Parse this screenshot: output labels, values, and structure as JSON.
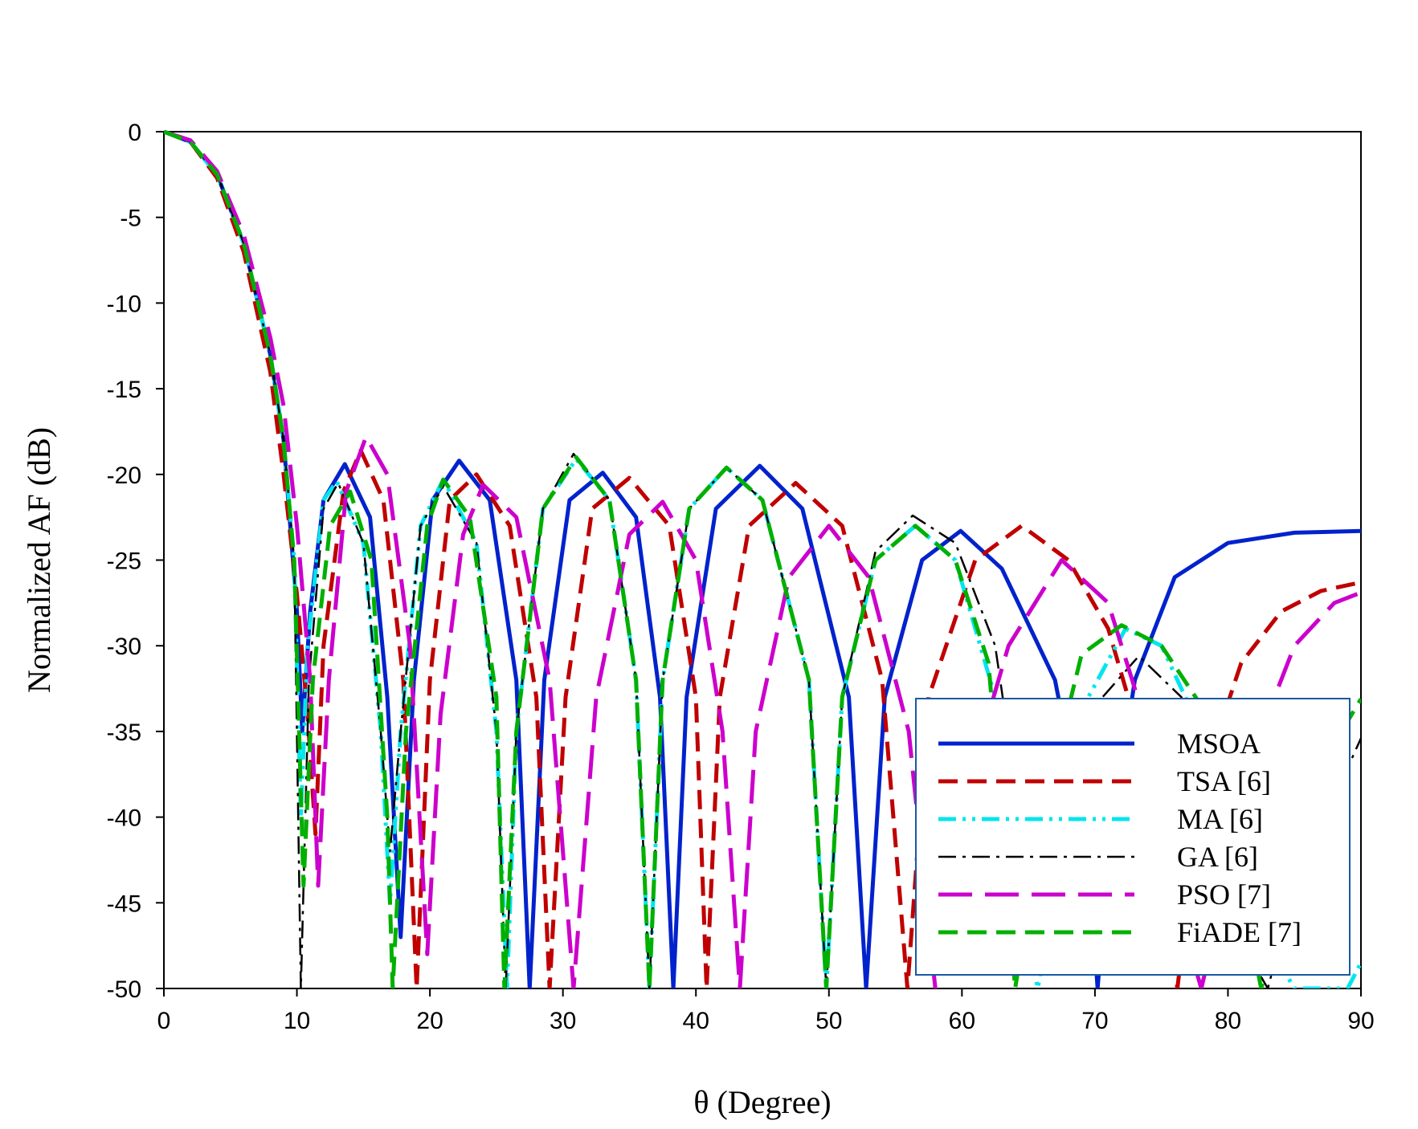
{
  "chart_data": {
    "type": "line",
    "title": "",
    "xlabel": "θ (Degree)",
    "ylabel": "Normalized AF (dB)",
    "xlim": [
      0,
      90
    ],
    "ylim": [
      -50,
      0
    ],
    "xticks": [
      0,
      10,
      20,
      30,
      40,
      50,
      60,
      70,
      80,
      90
    ],
    "yticks": [
      0,
      -5,
      -10,
      -15,
      -20,
      -25,
      -30,
      -35,
      -40,
      -45,
      -50
    ],
    "grid": false,
    "legend_position": "bottom-right",
    "series": [
      {
        "name": "MSOA",
        "color": "#0022cc",
        "style": "solid",
        "width": 5,
        "points": [
          [
            0,
            0
          ],
          [
            2,
            -0.6
          ],
          [
            4,
            -2.5
          ],
          [
            6,
            -6.5
          ],
          [
            8,
            -13
          ],
          [
            9,
            -18
          ],
          [
            10,
            -28
          ],
          [
            10.4,
            -35
          ],
          [
            11,
            -28
          ],
          [
            12,
            -21.5
          ],
          [
            13.6,
            -19.4
          ],
          [
            15.5,
            -22.5
          ],
          [
            16.8,
            -33
          ],
          [
            17.8,
            -47
          ],
          [
            18.8,
            -32
          ],
          [
            20.2,
            -21.5
          ],
          [
            22.2,
            -19.2
          ],
          [
            24.5,
            -21.5
          ],
          [
            26.5,
            -32
          ],
          [
            27.5,
            -50
          ],
          [
            28.6,
            -32
          ],
          [
            30.5,
            -21.5
          ],
          [
            33,
            -19.9
          ],
          [
            35.5,
            -22.5
          ],
          [
            37.3,
            -33
          ],
          [
            38.3,
            -50
          ],
          [
            39.3,
            -33
          ],
          [
            41.5,
            -22
          ],
          [
            44.8,
            -19.5
          ],
          [
            48,
            -22
          ],
          [
            51.5,
            -33
          ],
          [
            52.8,
            -50
          ],
          [
            54.2,
            -33
          ],
          [
            57,
            -25
          ],
          [
            59.9,
            -23.3
          ],
          [
            63,
            -25.5
          ],
          [
            67,
            -32
          ],
          [
            69.5,
            -42
          ],
          [
            70.2,
            -50
          ],
          [
            71,
            -42
          ],
          [
            73,
            -32
          ],
          [
            76,
            -26
          ],
          [
            80,
            -24
          ],
          [
            85,
            -23.4
          ],
          [
            90,
            -23.3
          ]
        ]
      },
      {
        "name": "TSA [6]",
        "color": "#c00000",
        "style": "dashed",
        "width": 5,
        "points": [
          [
            0,
            0
          ],
          [
            2,
            -0.6
          ],
          [
            4,
            -2.7
          ],
          [
            6,
            -7
          ],
          [
            8,
            -14
          ],
          [
            9,
            -20
          ],
          [
            10,
            -27
          ],
          [
            10.8,
            -34
          ],
          [
            11.4,
            -41
          ],
          [
            12,
            -30
          ],
          [
            13.5,
            -21
          ],
          [
            14.8,
            -18.6
          ],
          [
            16.5,
            -21.5
          ],
          [
            18,
            -32
          ],
          [
            19,
            -50
          ],
          [
            20,
            -32
          ],
          [
            21.5,
            -21.5
          ],
          [
            23.5,
            -20
          ],
          [
            26,
            -23
          ],
          [
            28,
            -33
          ],
          [
            29,
            -50
          ],
          [
            30.2,
            -33
          ],
          [
            32.2,
            -22
          ],
          [
            35,
            -20.2
          ],
          [
            38,
            -23
          ],
          [
            40,
            -33
          ],
          [
            40.8,
            -50
          ],
          [
            41.8,
            -33
          ],
          [
            44,
            -23
          ],
          [
            47.5,
            -20.5
          ],
          [
            51,
            -23
          ],
          [
            54,
            -32
          ],
          [
            55.9,
            -50
          ],
          [
            57.5,
            -33
          ],
          [
            61,
            -25
          ],
          [
            64.5,
            -23
          ],
          [
            68,
            -25
          ],
          [
            71,
            -29
          ],
          [
            74,
            -37
          ],
          [
            76.2,
            -50
          ],
          [
            78,
            -38
          ],
          [
            81,
            -31
          ],
          [
            84,
            -28
          ],
          [
            87,
            -26.8
          ],
          [
            90,
            -26.3
          ]
        ]
      },
      {
        "name": "MA [6]",
        "color": "#00e5ee",
        "style": "dashdotdot",
        "width": 5,
        "points": [
          [
            0,
            0
          ],
          [
            2,
            -0.6
          ],
          [
            4,
            -2.5
          ],
          [
            6,
            -6.5
          ],
          [
            8,
            -13
          ],
          [
            9,
            -18
          ],
          [
            9.8,
            -25
          ],
          [
            10.3,
            -40
          ],
          [
            10.8,
            -30
          ],
          [
            12,
            -21.5
          ],
          [
            13,
            -20.4
          ],
          [
            15,
            -24
          ],
          [
            16.3,
            -35
          ],
          [
            17,
            -45
          ],
          [
            17.8,
            -35
          ],
          [
            19.3,
            -23
          ],
          [
            21,
            -20.3
          ],
          [
            23.5,
            -24
          ],
          [
            25,
            -35
          ],
          [
            25.8,
            -50
          ],
          [
            26.5,
            -35
          ],
          [
            28.5,
            -22
          ],
          [
            31,
            -19.1
          ],
          [
            33.5,
            -21.5
          ],
          [
            35.5,
            -32
          ],
          [
            36.5,
            -50
          ],
          [
            37.5,
            -32
          ],
          [
            39.5,
            -22
          ],
          [
            42.3,
            -19.6
          ],
          [
            45,
            -21.5
          ],
          [
            48.5,
            -32
          ],
          [
            49.8,
            -50
          ],
          [
            51,
            -33
          ],
          [
            53.5,
            -25
          ],
          [
            56.5,
            -23
          ],
          [
            59.5,
            -25
          ],
          [
            62.5,
            -33
          ],
          [
            64.5,
            -45
          ],
          [
            65.7,
            -50
          ],
          [
            67.5,
            -42
          ],
          [
            69.5,
            -33
          ],
          [
            72.3,
            -29
          ],
          [
            75,
            -30
          ],
          [
            78,
            -35
          ],
          [
            80.5,
            -44
          ],
          [
            85,
            -50
          ],
          [
            89,
            -50
          ],
          [
            90,
            -48.5
          ]
        ]
      },
      {
        "name": "GA [6]",
        "color": "#000000",
        "style": "dashdot",
        "width": 2.5,
        "points": [
          [
            0,
            0
          ],
          [
            2,
            -0.6
          ],
          [
            4,
            -2.5
          ],
          [
            6,
            -6.5
          ],
          [
            8,
            -13
          ],
          [
            9,
            -18
          ],
          [
            9.8,
            -25
          ],
          [
            10.3,
            -50
          ],
          [
            10.9,
            -32
          ],
          [
            12,
            -22
          ],
          [
            13.1,
            -20.5
          ],
          [
            15,
            -24
          ],
          [
            16.3,
            -35
          ],
          [
            17,
            -42
          ],
          [
            17.8,
            -35
          ],
          [
            19.3,
            -23
          ],
          [
            21,
            -20.7
          ],
          [
            23.5,
            -24
          ],
          [
            25,
            -35
          ],
          [
            25.7,
            -50
          ],
          [
            26.5,
            -35
          ],
          [
            28.5,
            -22
          ],
          [
            30.8,
            -18.8
          ],
          [
            33.5,
            -21.5
          ],
          [
            35.5,
            -32
          ],
          [
            36.5,
            -50
          ],
          [
            37.5,
            -32
          ],
          [
            39.5,
            -22
          ],
          [
            42.3,
            -19.6
          ],
          [
            45,
            -21.5
          ],
          [
            48.5,
            -32
          ],
          [
            49.8,
            -50
          ],
          [
            51,
            -33
          ],
          [
            53.5,
            -24.5
          ],
          [
            56.3,
            -22.4
          ],
          [
            59.5,
            -24
          ],
          [
            62.5,
            -30
          ],
          [
            64,
            -38
          ],
          [
            65.5,
            -48
          ],
          [
            66.5,
            -44
          ],
          [
            70,
            -33.5
          ],
          [
            73.3,
            -30.6
          ],
          [
            76.5,
            -33
          ],
          [
            79,
            -40
          ],
          [
            81.5,
            -48
          ],
          [
            83,
            -50
          ],
          [
            85,
            -44
          ],
          [
            90,
            -35.4
          ]
        ]
      },
      {
        "name": "PSO [7]",
        "color": "#cc00cc",
        "style": "longdash",
        "width": 5,
        "points": [
          [
            0,
            0
          ],
          [
            2,
            -0.5
          ],
          [
            4,
            -2.3
          ],
          [
            6,
            -6
          ],
          [
            8,
            -12
          ],
          [
            9,
            -16
          ],
          [
            10,
            -23
          ],
          [
            11,
            -32
          ],
          [
            11.6,
            -44
          ],
          [
            12.4,
            -32
          ],
          [
            13.7,
            -21
          ],
          [
            15.2,
            -17.8
          ],
          [
            16.8,
            -20
          ],
          [
            18.5,
            -30
          ],
          [
            19.8,
            -48
          ],
          [
            20.8,
            -34
          ],
          [
            22.5,
            -23.5
          ],
          [
            24,
            -20.6
          ],
          [
            26.5,
            -22.5
          ],
          [
            29,
            -32
          ],
          [
            30.8,
            -50
          ],
          [
            32.5,
            -33
          ],
          [
            35,
            -23.5
          ],
          [
            37.5,
            -21.6
          ],
          [
            40,
            -25
          ],
          [
            42,
            -35
          ],
          [
            43.3,
            -50
          ],
          [
            44.5,
            -35
          ],
          [
            47,
            -26
          ],
          [
            50,
            -23
          ],
          [
            53,
            -26
          ],
          [
            56,
            -35
          ],
          [
            58,
            -50
          ],
          [
            60.5,
            -38
          ],
          [
            63.5,
            -30
          ],
          [
            67.5,
            -25
          ],
          [
            71,
            -27.5
          ],
          [
            74,
            -35
          ],
          [
            76.5,
            -46
          ],
          [
            78,
            -50
          ],
          [
            79.5,
            -45
          ],
          [
            82,
            -36
          ],
          [
            85,
            -30
          ],
          [
            88,
            -27.5
          ],
          [
            90,
            -26.9
          ]
        ]
      },
      {
        "name": "FiADE [7]",
        "color": "#00b000",
        "style": "dashed",
        "width": 5,
        "points": [
          [
            0,
            0
          ],
          [
            2,
            -0.6
          ],
          [
            4,
            -2.5
          ],
          [
            6,
            -6.5
          ],
          [
            8,
            -13
          ],
          [
            9,
            -18
          ],
          [
            9.8,
            -25
          ],
          [
            10.5,
            -44
          ],
          [
            11.2,
            -32
          ],
          [
            12.5,
            -23
          ],
          [
            14,
            -21
          ],
          [
            15.6,
            -25
          ],
          [
            16.8,
            -40
          ],
          [
            17.2,
            -50
          ],
          [
            18.2,
            -35
          ],
          [
            19.8,
            -23
          ],
          [
            21,
            -20.3
          ],
          [
            23,
            -22.5
          ],
          [
            25,
            -33
          ],
          [
            25.6,
            -50
          ],
          [
            26.5,
            -35
          ],
          [
            28.5,
            -22
          ],
          [
            31,
            -19
          ],
          [
            33.5,
            -21.5
          ],
          [
            35.5,
            -32
          ],
          [
            36.5,
            -50
          ],
          [
            37.5,
            -32
          ],
          [
            39.5,
            -22
          ],
          [
            42.3,
            -19.6
          ],
          [
            45,
            -21.5
          ],
          [
            48.5,
            -32
          ],
          [
            49.8,
            -50
          ],
          [
            51,
            -33
          ],
          [
            53.5,
            -25
          ],
          [
            56.5,
            -23
          ],
          [
            59.5,
            -25
          ],
          [
            62,
            -31
          ],
          [
            63.5,
            -45
          ],
          [
            64,
            -50
          ],
          [
            66,
            -40
          ],
          [
            69,
            -30.5
          ],
          [
            72,
            -28.8
          ],
          [
            75,
            -30
          ],
          [
            78,
            -33.5
          ],
          [
            80.5,
            -42
          ],
          [
            82.5,
            -50
          ],
          [
            84.5,
            -44
          ],
          [
            87,
            -37
          ],
          [
            90,
            -33.1
          ]
        ]
      }
    ]
  }
}
